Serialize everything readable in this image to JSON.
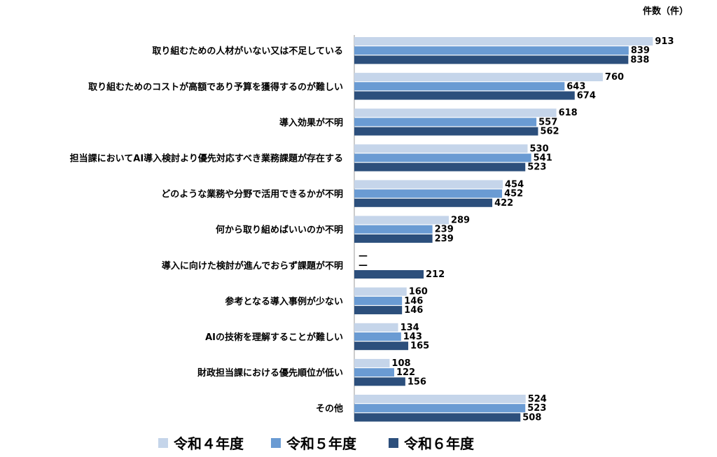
{
  "chart_data": {
    "type": "bar",
    "orientation": "horizontal",
    "unit_label": "件数（件）",
    "categories": [
      "取り組むための人材がいない又は不足している",
      "取り組むためのコストが高額であり予算を獲得するのが難しい",
      "導入効果が不明",
      "担当課においてAI導入検討より優先対応すべき業務課題が存在する",
      "どのような業務や分野で活用できるかが不明",
      "何から取り組めばいいのか不明",
      "導入に向けた検討が進んでおらず課題が不明",
      "参考となる導入事例が少ない",
      "AIの技術を理解することが難しい",
      "財政担当課における優先順位が低い",
      "その他"
    ],
    "series": [
      {
        "name": "令和４年度",
        "color": "#c5d5ea",
        "values": [
          913,
          760,
          618,
          530,
          454,
          289,
          null,
          160,
          134,
          108,
          524
        ],
        "labels": [
          "913",
          "760",
          "618",
          "530",
          "454",
          "289",
          "—",
          "160",
          "134",
          "108",
          "524"
        ]
      },
      {
        "name": "令和５年度",
        "color": "#6a9bd3",
        "values": [
          839,
          643,
          557,
          541,
          452,
          239,
          null,
          146,
          143,
          122,
          523
        ],
        "labels": [
          "839",
          "643",
          "557",
          "541",
          "452",
          "239",
          "—",
          "146",
          "143",
          "122",
          "523"
        ]
      },
      {
        "name": "令和６年度",
        "color": "#2c4f7c",
        "values": [
          838,
          674,
          562,
          523,
          422,
          239,
          212,
          146,
          165,
          156,
          508
        ],
        "labels": [
          "838",
          "674",
          "562",
          "523",
          "422",
          "239",
          "212",
          "146",
          "165",
          "156",
          "508"
        ]
      }
    ],
    "xlim": [
      0,
      1000
    ],
    "grid": false,
    "legend_position": "bottom"
  }
}
